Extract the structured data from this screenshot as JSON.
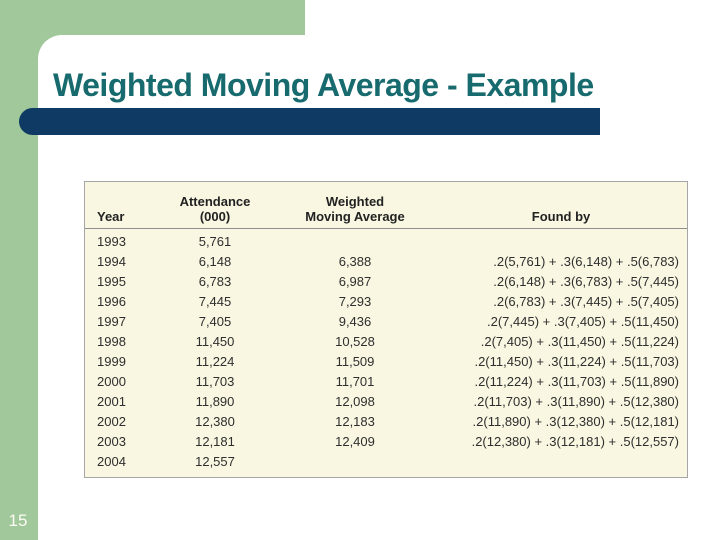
{
  "slide": {
    "title": "Weighted Moving Average - Example",
    "page_number": "15"
  },
  "colors": {
    "sidebar_green": "#A0C89B",
    "title_bar_navy": "#0F3A64",
    "title_teal": "#176A6D",
    "table_background": "#F9F6E1",
    "table_border": "#A6A6A6"
  },
  "table": {
    "headers": {
      "year": "Year",
      "attendance": [
        "Attendance",
        "(000)"
      ],
      "weighted_moving_average": [
        "Weighted",
        "Moving Average"
      ],
      "found_by": "Found by"
    },
    "rows": [
      {
        "year": "1993",
        "attendance": "5,761",
        "wma": "",
        "found_by": ""
      },
      {
        "year": "1994",
        "attendance": "6,148",
        "wma": "6,388",
        "found_by": ".2(5,761) + .3(6,148) + .5(6,783)"
      },
      {
        "year": "1995",
        "attendance": "6,783",
        "wma": "6,987",
        "found_by": ".2(6,148) + .3(6,783) + .5(7,445)"
      },
      {
        "year": "1996",
        "attendance": "7,445",
        "wma": "7,293",
        "found_by": ".2(6,783) + .3(7,445) + .5(7,405)"
      },
      {
        "year": "1997",
        "attendance": "7,405",
        "wma": "9,436",
        "found_by": ".2(7,445) + .3(7,405) + .5(11,450)"
      },
      {
        "year": "1998",
        "attendance": "11,450",
        "wma": "10,528",
        "found_by": ".2(7,405) + .3(11,450) + .5(11,224)"
      },
      {
        "year": "1999",
        "attendance": "11,224",
        "wma": "11,509",
        "found_by": ".2(11,450) + .3(11,224) + .5(11,703)"
      },
      {
        "year": "2000",
        "attendance": "11,703",
        "wma": "11,701",
        "found_by": ".2(11,224) + .3(11,703) + .5(11,890)"
      },
      {
        "year": "2001",
        "attendance": "11,890",
        "wma": "12,098",
        "found_by": ".2(11,703) + .3(11,890) + .5(12,380)"
      },
      {
        "year": "2002",
        "attendance": "12,380",
        "wma": "12,183",
        "found_by": ".2(11,890) + .3(12,380) + .5(12,181)"
      },
      {
        "year": "2003",
        "attendance": "12,181",
        "wma": "12,409",
        "found_by": ".2(12,380) + .3(12,181) + .5(12,557)"
      },
      {
        "year": "2004",
        "attendance": "12,557",
        "wma": "",
        "found_by": ""
      }
    ]
  }
}
